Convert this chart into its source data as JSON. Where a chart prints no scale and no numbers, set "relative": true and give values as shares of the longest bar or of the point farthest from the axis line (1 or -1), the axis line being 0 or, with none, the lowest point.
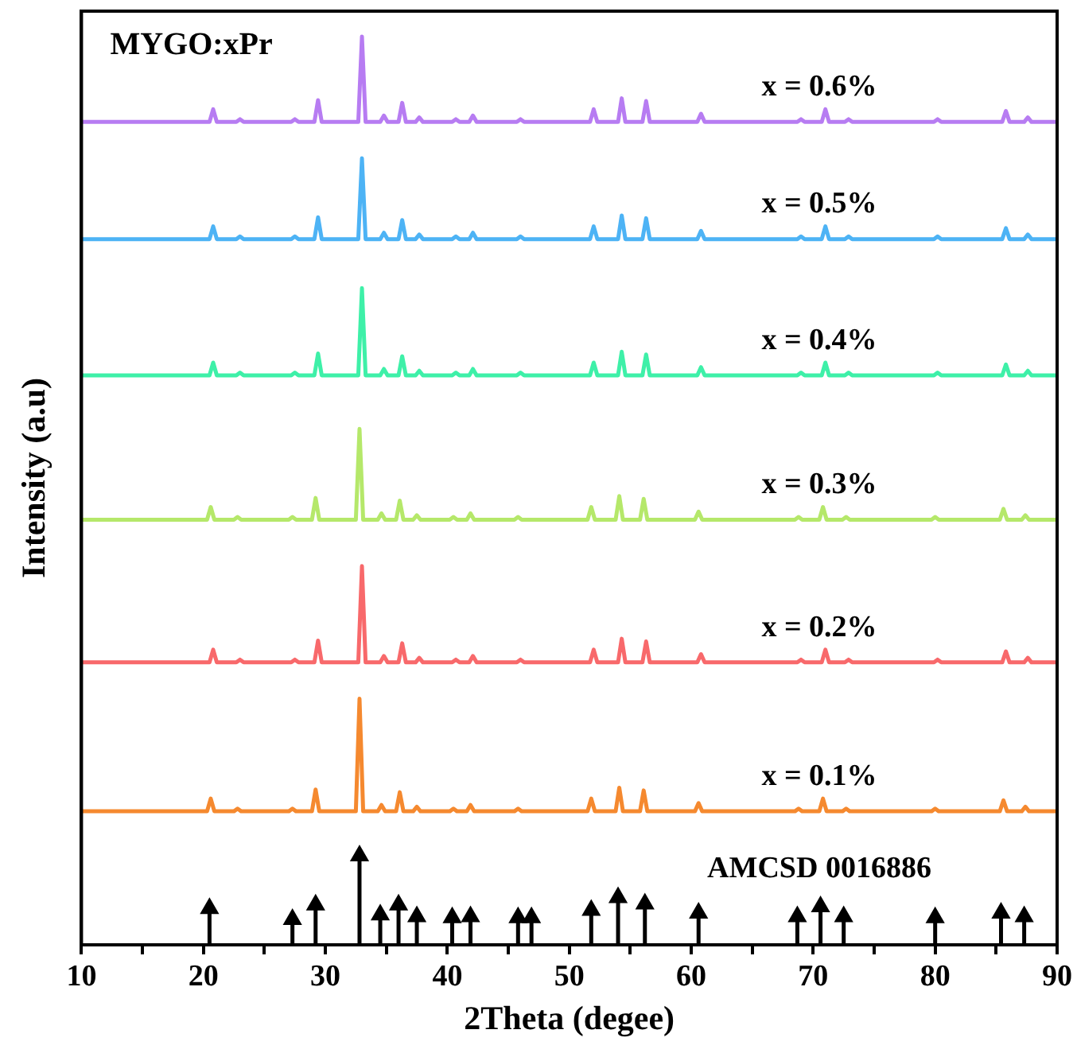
{
  "chart_data": {
    "type": "line",
    "relative": true,
    "xlabel": "2Theta (degee)",
    "ylabel": "Intensity (a.u)",
    "annotations": [
      "MYGO:xPr"
    ],
    "xlim": [
      10,
      90
    ],
    "xticks": [
      10,
      {
        "value": 15,
        "label": null
      },
      20,
      {
        "value": 25,
        "label": null
      },
      30,
      {
        "value": 35,
        "label": null
      },
      40,
      {
        "value": 45,
        "label": null
      },
      50,
      {
        "value": 55,
        "label": null
      },
      60,
      {
        "value": 65,
        "label": null
      },
      70,
      {
        "value": 75,
        "label": null
      },
      80,
      {
        "value": 85,
        "label": null
      },
      90
    ],
    "legend": false,
    "marker": "none",
    "line_style": "solid",
    "series": [
      {
        "name": "x = 0.6%",
        "color": "#b77cf2",
        "x": [
          10,
          20.5,
          20.8,
          21.1,
          22.7,
          23,
          23.3,
          27.2,
          27.5,
          27.8,
          29.1,
          29.4,
          29.7,
          32.7,
          33,
          33.3,
          34.5,
          34.8,
          35.1,
          36,
          36.3,
          36.6,
          37.4,
          37.7,
          38,
          40.4,
          40.7,
          41,
          41.8,
          42.1,
          42.4,
          45.7,
          46,
          46.3,
          51.7,
          52,
          52.3,
          54,
          54.3,
          54.6,
          56,
          56.3,
          56.6,
          60.5,
          60.8,
          61.1,
          68.7,
          69,
          69.3,
          70.7,
          71,
          71.3,
          72.6,
          72.9,
          73.2,
          79.9,
          80.2,
          80.5,
          85.5,
          85.8,
          86.1,
          87.3,
          87.6,
          87.9,
          90
        ],
        "values": [
          0.906,
          0.906,
          0.92,
          0.906,
          0.906,
          0.909,
          0.906,
          0.906,
          0.909,
          0.906,
          0.906,
          0.93,
          0.906,
          0.906,
          1.0,
          0.906,
          0.906,
          0.913,
          0.906,
          0.906,
          0.927,
          0.906,
          0.906,
          0.911,
          0.906,
          0.906,
          0.909,
          0.906,
          0.906,
          0.913,
          0.906,
          0.906,
          0.909,
          0.906,
          0.906,
          0.92,
          0.906,
          0.906,
          0.932,
          0.906,
          0.906,
          0.929,
          0.906,
          0.906,
          0.915,
          0.906,
          0.906,
          0.909,
          0.906,
          0.906,
          0.92,
          0.906,
          0.906,
          0.909,
          0.906,
          0.906,
          0.909,
          0.906,
          0.906,
          0.918,
          0.906,
          0.906,
          0.911,
          0.906,
          0.906
        ]
      },
      {
        "name": "x = 0.5%",
        "color": "#4db3f5",
        "x": [
          10,
          20.5,
          20.8,
          21.1,
          22.7,
          23,
          23.3,
          27.2,
          27.5,
          27.8,
          29.1,
          29.4,
          29.7,
          32.7,
          33,
          33.3,
          34.5,
          34.8,
          35.1,
          36,
          36.3,
          36.6,
          37.4,
          37.7,
          38,
          40.4,
          40.7,
          41,
          41.8,
          42.1,
          42.4,
          45.7,
          46,
          46.3,
          51.7,
          52,
          52.3,
          54,
          54.3,
          54.6,
          56,
          56.3,
          56.6,
          60.5,
          60.8,
          61.1,
          68.7,
          69,
          69.3,
          70.7,
          71,
          71.3,
          72.6,
          72.9,
          73.2,
          79.9,
          80.2,
          80.5,
          85.5,
          85.8,
          86.1,
          87.3,
          87.6,
          87.9,
          90
        ],
        "values": [
          0.777,
          0.777,
          0.791,
          0.777,
          0.777,
          0.78,
          0.777,
          0.777,
          0.78,
          0.777,
          0.777,
          0.801,
          0.777,
          0.777,
          0.866,
          0.777,
          0.777,
          0.784,
          0.777,
          0.777,
          0.798,
          0.777,
          0.777,
          0.782,
          0.777,
          0.777,
          0.78,
          0.777,
          0.777,
          0.784,
          0.777,
          0.777,
          0.78,
          0.777,
          0.777,
          0.791,
          0.777,
          0.777,
          0.803,
          0.777,
          0.777,
          0.8,
          0.777,
          0.777,
          0.786,
          0.777,
          0.777,
          0.78,
          0.777,
          0.777,
          0.791,
          0.777,
          0.777,
          0.78,
          0.777,
          0.777,
          0.78,
          0.777,
          0.777,
          0.789,
          0.777,
          0.777,
          0.782,
          0.777,
          0.777
        ]
      },
      {
        "name": "x = 0.4%",
        "color": "#3ef0a8",
        "x": [
          10,
          20.5,
          20.8,
          21.1,
          22.7,
          23,
          23.3,
          27.2,
          27.5,
          27.8,
          29.1,
          29.4,
          29.7,
          32.7,
          33,
          33.3,
          34.5,
          34.8,
          35.1,
          36,
          36.3,
          36.6,
          37.4,
          37.7,
          38,
          40.4,
          40.7,
          41,
          41.8,
          42.1,
          42.4,
          45.7,
          46,
          46.3,
          51.7,
          52,
          52.3,
          54,
          54.3,
          54.6,
          56,
          56.3,
          56.6,
          60.5,
          60.8,
          61.1,
          68.7,
          69,
          69.3,
          70.7,
          71,
          71.3,
          72.6,
          72.9,
          73.2,
          79.9,
          80.2,
          80.5,
          85.5,
          85.8,
          86.1,
          87.3,
          87.6,
          87.9,
          90
        ],
        "values": [
          0.627,
          0.627,
          0.641,
          0.627,
          0.627,
          0.63,
          0.627,
          0.627,
          0.63,
          0.627,
          0.627,
          0.651,
          0.627,
          0.627,
          0.723,
          0.627,
          0.627,
          0.634,
          0.627,
          0.627,
          0.648,
          0.627,
          0.627,
          0.632,
          0.627,
          0.627,
          0.63,
          0.627,
          0.627,
          0.634,
          0.627,
          0.627,
          0.63,
          0.627,
          0.627,
          0.641,
          0.627,
          0.627,
          0.653,
          0.627,
          0.627,
          0.65,
          0.627,
          0.627,
          0.636,
          0.627,
          0.627,
          0.63,
          0.627,
          0.627,
          0.641,
          0.627,
          0.627,
          0.63,
          0.627,
          0.627,
          0.63,
          0.627,
          0.627,
          0.639,
          0.627,
          0.627,
          0.632,
          0.627,
          0.627
        ]
      },
      {
        "name": "x = 0.3%",
        "color": "#b5e86a",
        "x": [
          10,
          20.3,
          20.6,
          20.9,
          22.5,
          22.8,
          23.1,
          27.0,
          27.3,
          27.6,
          28.9,
          29.2,
          29.5,
          32.5,
          32.8,
          33.1,
          34.3,
          34.6,
          34.9,
          35.8,
          36.1,
          36.4,
          37.2,
          37.5,
          37.8,
          40.2,
          40.5,
          40.8,
          41.6,
          41.9,
          42.2,
          45.5,
          45.8,
          46.1,
          51.5,
          51.8,
          52.1,
          53.8,
          54.1,
          54.4,
          55.8,
          56.1,
          56.4,
          60.3,
          60.6,
          60.9,
          68.5,
          68.8,
          69.1,
          70.5,
          70.8,
          71.1,
          72.4,
          72.7,
          73.0,
          79.7,
          80.0,
          80.3,
          85.3,
          85.6,
          85.9,
          87.1,
          87.4,
          87.7,
          90
        ],
        "values": [
          0.468,
          0.468,
          0.482,
          0.468,
          0.468,
          0.471,
          0.468,
          0.468,
          0.471,
          0.468,
          0.468,
          0.492,
          0.468,
          0.468,
          0.568,
          0.468,
          0.468,
          0.475,
          0.468,
          0.468,
          0.489,
          0.468,
          0.468,
          0.473,
          0.468,
          0.468,
          0.471,
          0.468,
          0.468,
          0.475,
          0.468,
          0.468,
          0.471,
          0.468,
          0.468,
          0.482,
          0.468,
          0.468,
          0.494,
          0.468,
          0.468,
          0.491,
          0.468,
          0.468,
          0.477,
          0.468,
          0.468,
          0.471,
          0.468,
          0.468,
          0.482,
          0.468,
          0.468,
          0.471,
          0.468,
          0.468,
          0.471,
          0.468,
          0.468,
          0.48,
          0.468,
          0.468,
          0.473,
          0.468,
          0.468
        ]
      },
      {
        "name": "x = 0.2%",
        "color": "#f8696b",
        "x": [
          10,
          20.5,
          20.8,
          21.1,
          22.7,
          23,
          23.3,
          27.2,
          27.5,
          27.8,
          29.1,
          29.4,
          29.7,
          32.7,
          33,
          33.3,
          34.5,
          34.8,
          35.1,
          36,
          36.3,
          36.6,
          37.4,
          37.7,
          38,
          40.4,
          40.7,
          41,
          41.8,
          42.1,
          42.4,
          45.7,
          46,
          46.3,
          51.7,
          52,
          52.3,
          54,
          54.3,
          54.6,
          56,
          56.3,
          56.6,
          60.5,
          60.8,
          61.1,
          68.7,
          69,
          69.3,
          70.7,
          71,
          71.3,
          72.6,
          72.9,
          73.2,
          79.9,
          80.2,
          80.5,
          85.5,
          85.8,
          86.1,
          87.3,
          87.6,
          87.9,
          90
        ],
        "values": [
          0.311,
          0.311,
          0.325,
          0.311,
          0.311,
          0.314,
          0.311,
          0.311,
          0.314,
          0.311,
          0.311,
          0.335,
          0.311,
          0.311,
          0.417,
          0.311,
          0.311,
          0.318,
          0.311,
          0.311,
          0.332,
          0.311,
          0.311,
          0.316,
          0.311,
          0.311,
          0.314,
          0.311,
          0.311,
          0.318,
          0.311,
          0.311,
          0.314,
          0.311,
          0.311,
          0.325,
          0.311,
          0.311,
          0.337,
          0.311,
          0.311,
          0.334,
          0.311,
          0.311,
          0.32,
          0.311,
          0.311,
          0.314,
          0.311,
          0.311,
          0.325,
          0.311,
          0.311,
          0.314,
          0.311,
          0.311,
          0.314,
          0.311,
          0.311,
          0.323,
          0.311,
          0.311,
          0.316,
          0.311,
          0.311
        ]
      },
      {
        "name": "x = 0.1%",
        "color": "#f5892f",
        "x": [
          10,
          20.3,
          20.6,
          20.9,
          22.5,
          22.8,
          23.1,
          27.0,
          27.3,
          27.6,
          28.9,
          29.2,
          29.5,
          32.5,
          32.8,
          33.1,
          34.3,
          34.6,
          34.9,
          35.8,
          36.1,
          36.4,
          37.2,
          37.5,
          37.8,
          40.2,
          40.5,
          40.8,
          41.6,
          41.9,
          42.2,
          45.5,
          45.8,
          46.1,
          51.5,
          51.8,
          52.1,
          53.8,
          54.1,
          54.4,
          55.8,
          56.1,
          56.4,
          60.3,
          60.6,
          60.9,
          68.5,
          68.8,
          69.1,
          70.5,
          70.8,
          71.1,
          72.4,
          72.7,
          73.0,
          79.7,
          80.0,
          80.3,
          85.3,
          85.6,
          85.9,
          87.1,
          87.4,
          87.7,
          90
        ],
        "values": [
          0.147,
          0.147,
          0.161,
          0.147,
          0.147,
          0.15,
          0.147,
          0.147,
          0.15,
          0.147,
          0.147,
          0.171,
          0.147,
          0.147,
          0.271,
          0.147,
          0.147,
          0.154,
          0.147,
          0.147,
          0.168,
          0.147,
          0.147,
          0.152,
          0.147,
          0.147,
          0.15,
          0.147,
          0.147,
          0.154,
          0.147,
          0.147,
          0.15,
          0.147,
          0.147,
          0.161,
          0.147,
          0.147,
          0.173,
          0.147,
          0.147,
          0.17,
          0.147,
          0.147,
          0.156,
          0.147,
          0.147,
          0.15,
          0.147,
          0.147,
          0.161,
          0.147,
          0.147,
          0.15,
          0.147,
          0.147,
          0.15,
          0.147,
          0.147,
          0.159,
          0.147,
          0.147,
          0.152,
          0.147,
          0.147
        ]
      },
      {
        "name": "AMCSD 0016886",
        "type": "lollipop",
        "marker": "triangle",
        "color": "#000000",
        "x": [
          20.5,
          27.3,
          29.2,
          32.8,
          34.5,
          36.0,
          37.5,
          40.4,
          41.9,
          45.8,
          46.9,
          51.8,
          54.0,
          56.2,
          60.6,
          68.7,
          70.6,
          72.5,
          80.0,
          85.4,
          87.3
        ],
        "values": [
          0.04,
          0.028,
          0.044,
          0.098,
          0.033,
          0.044,
          0.031,
          0.03,
          0.031,
          0.03,
          0.03,
          0.038,
          0.052,
          0.045,
          0.035,
          0.031,
          0.042,
          0.031,
          0.03,
          0.035,
          0.031
        ]
      }
    ]
  }
}
